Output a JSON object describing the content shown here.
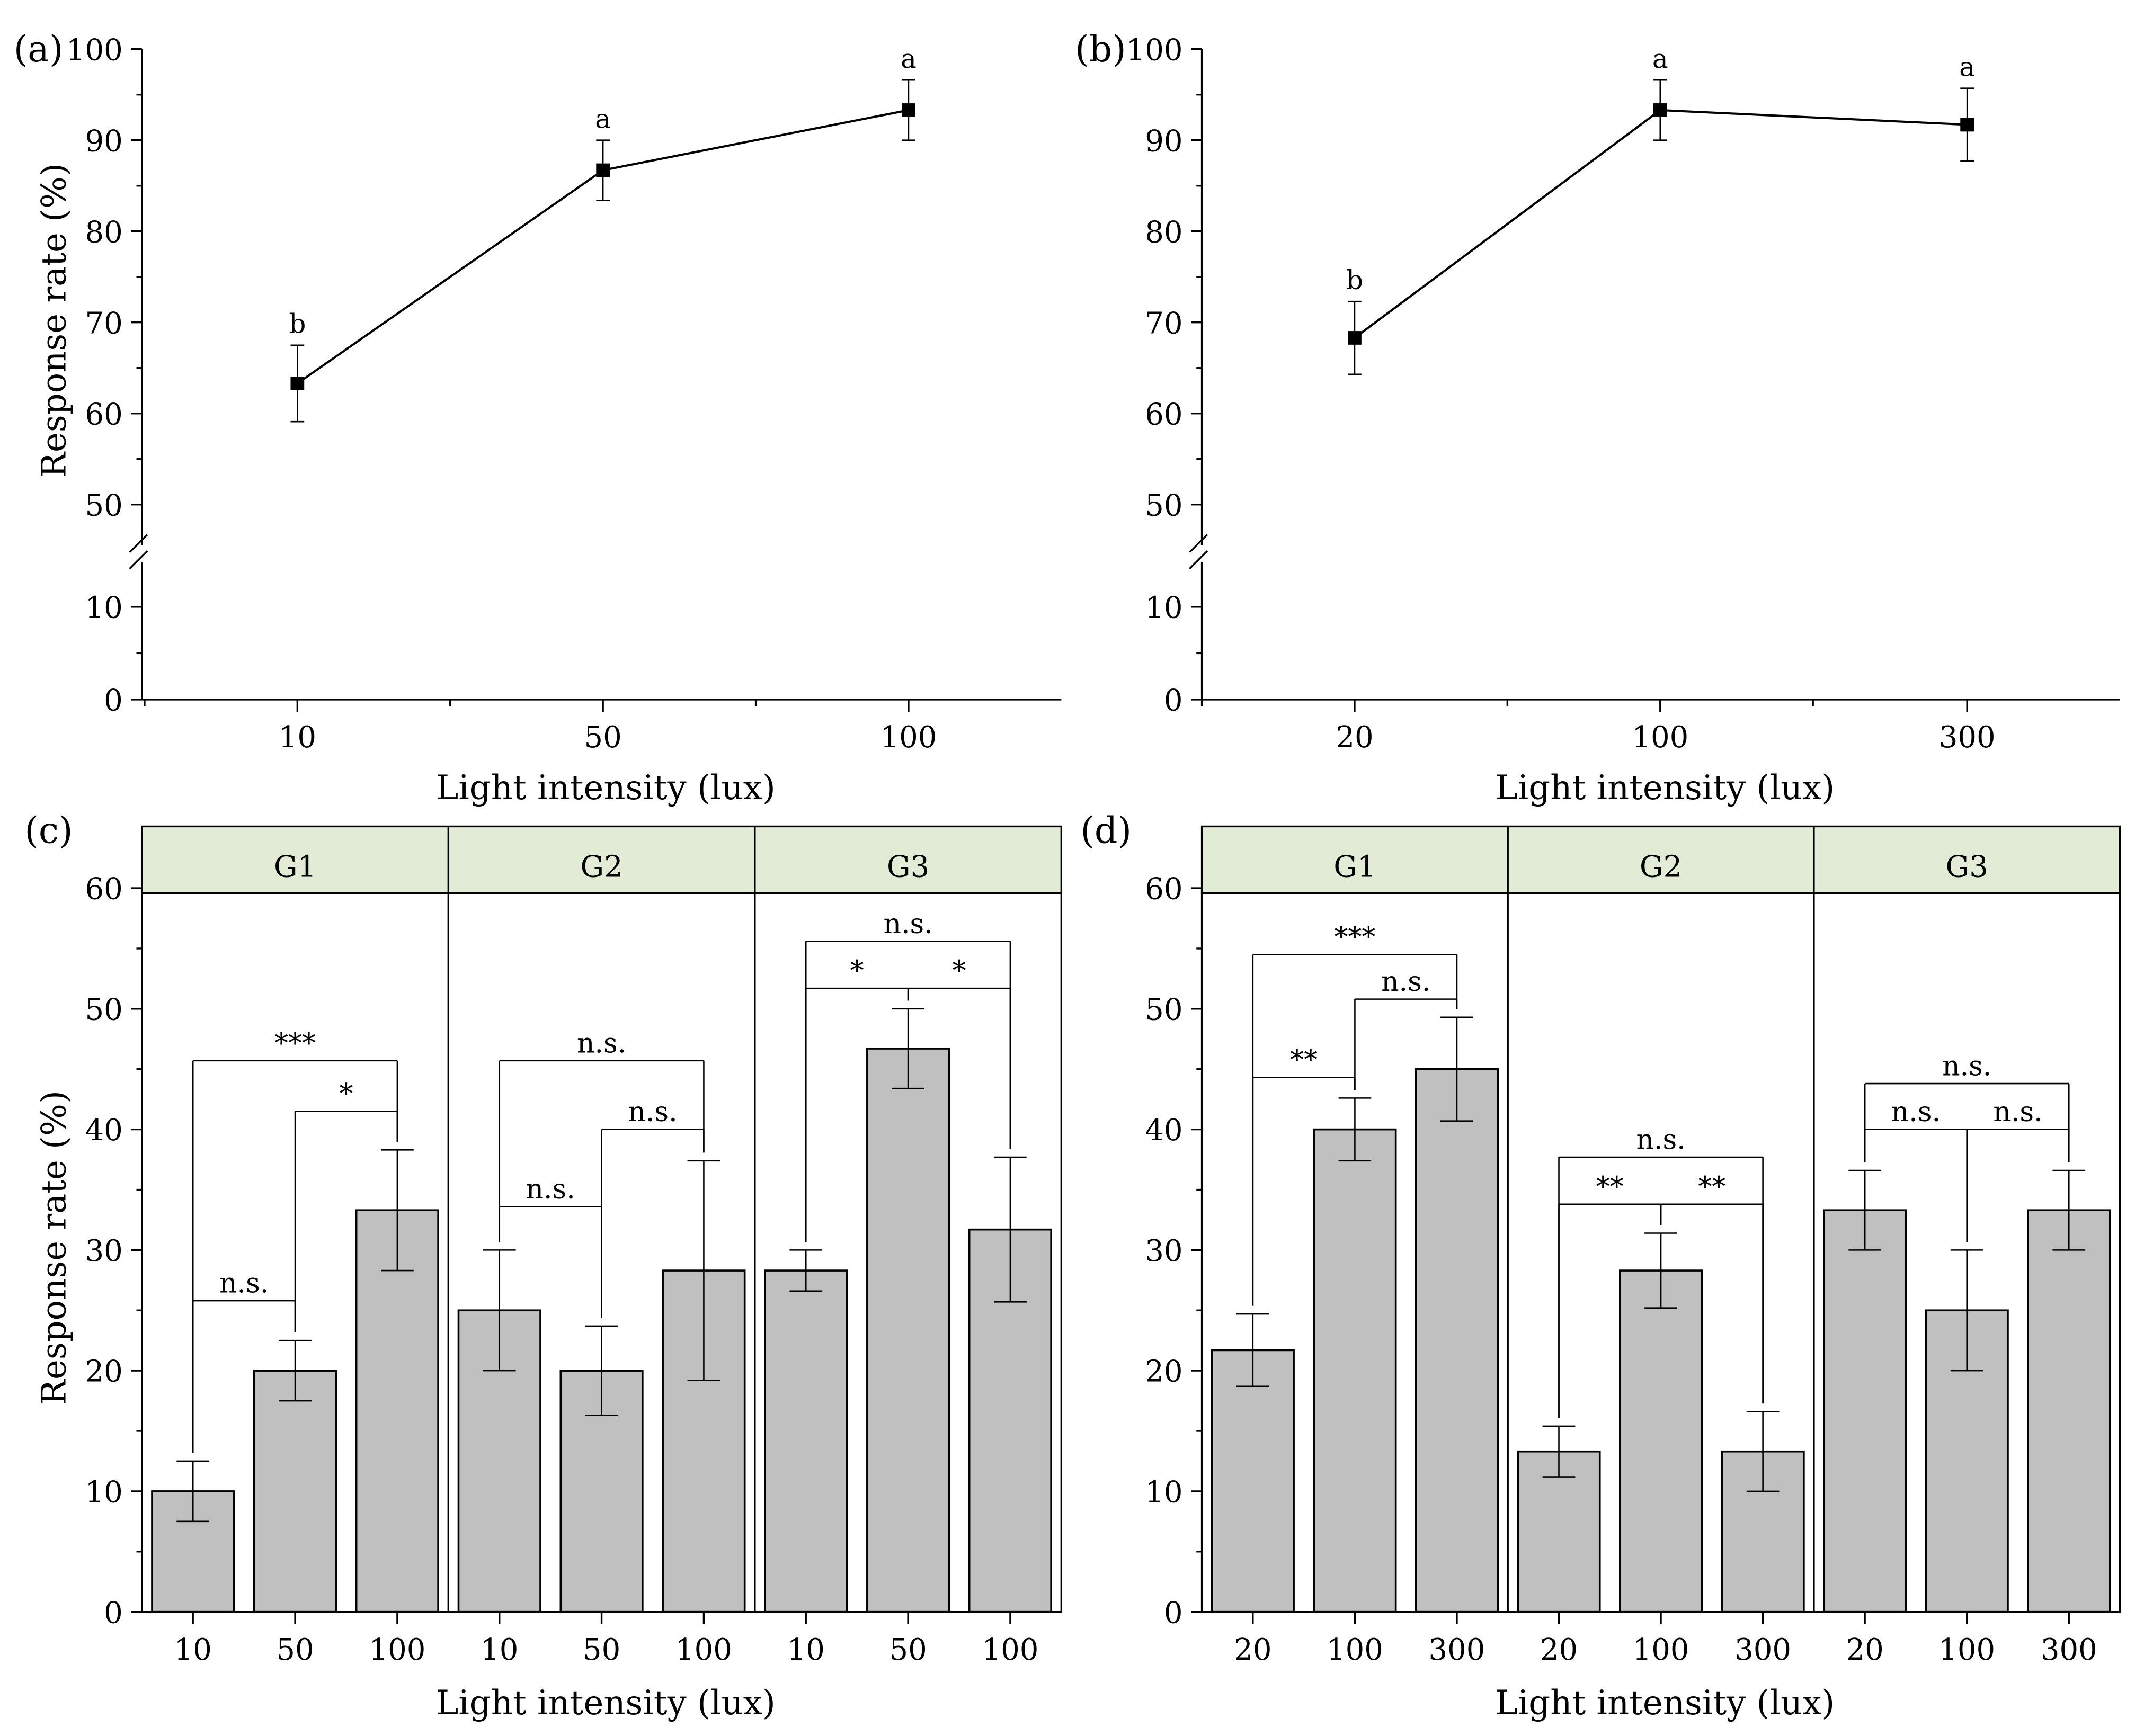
{
  "figure": {
    "background": "#ffffff",
    "bar_fill": "#c0c0c0",
    "strip_fill": "#e2ebd5",
    "line_color": "#000000"
  },
  "chart_data": [
    {
      "panel": "(a)",
      "type": "line",
      "categories": [
        "10",
        "50",
        "100"
      ],
      "values": [
        63.3,
        86.7,
        93.3
      ],
      "errors": [
        4.2,
        3.3,
        3.3
      ],
      "letters": [
        "b",
        "a",
        "a"
      ],
      "xlabel": "Light intensity (lux)",
      "ylabel": "Response rate (%)",
      "yticks_low": [
        "0",
        "10"
      ],
      "yticks_high": [
        "50",
        "60",
        "70",
        "80",
        "90",
        "100"
      ],
      "axis_break": true,
      "ylim_high": [
        45,
        100
      ]
    },
    {
      "panel": "(b)",
      "type": "line",
      "categories": [
        "20",
        "100",
        "300"
      ],
      "values": [
        68.3,
        93.3,
        91.7
      ],
      "errors": [
        4.0,
        3.3,
        4.0
      ],
      "letters": [
        "b",
        "a",
        "a"
      ],
      "xlabel": "Light intensity (lux)",
      "ylabel": "",
      "yticks_low": [
        "0",
        "10"
      ],
      "yticks_high": [
        "50",
        "60",
        "70",
        "80",
        "90",
        "100"
      ],
      "axis_break": true,
      "ylim_high": [
        45,
        100
      ]
    },
    {
      "panel": "(c)",
      "type": "bar",
      "xlabel": "Light intensity (lux)",
      "ylabel": "Response rate (%)",
      "ylim": [
        0,
        60
      ],
      "yticks": [
        "0",
        "10",
        "20",
        "30",
        "40",
        "50",
        "60"
      ],
      "groups": [
        {
          "name": "G1",
          "categories": [
            "10",
            "50",
            "100"
          ],
          "values": [
            10.0,
            20.0,
            33.3
          ],
          "errors": [
            2.5,
            2.5,
            5.0
          ],
          "comparisons": [
            {
              "from": 0,
              "to": 1,
              "label": "n.s.",
              "y": 25.8
            },
            {
              "from": 1,
              "to": 2,
              "label": "*",
              "y": 41.5
            },
            {
              "from": 0,
              "to": 2,
              "label": "***",
              "y": 45.7
            }
          ]
        },
        {
          "name": "G2",
          "categories": [
            "10",
            "50",
            "100"
          ],
          "values": [
            25.0,
            20.0,
            28.3
          ],
          "errors": [
            5.0,
            3.7,
            9.1
          ],
          "comparisons": [
            {
              "from": 0,
              "to": 1,
              "label": "n.s.",
              "y": 33.6
            },
            {
              "from": 1,
              "to": 2,
              "label": "n.s.",
              "y": 40.0
            },
            {
              "from": 0,
              "to": 2,
              "label": "n.s.",
              "y": 45.7
            }
          ]
        },
        {
          "name": "G3",
          "categories": [
            "10",
            "50",
            "100"
          ],
          "values": [
            28.3,
            46.7,
            31.7
          ],
          "errors": [
            1.7,
            3.3,
            6.0
          ],
          "comparisons": [
            {
              "from": 0,
              "to": 1,
              "label": "*",
              "y": 51.7
            },
            {
              "from": 1,
              "to": 2,
              "label": "*",
              "y": 51.7
            },
            {
              "from": 0,
              "to": 2,
              "label": "n.s.",
              "y": 55.6
            }
          ]
        }
      ]
    },
    {
      "panel": "(d)",
      "type": "bar",
      "xlabel": "Light intensity (lux)",
      "ylabel": "",
      "ylim": [
        0,
        60
      ],
      "yticks": [
        "0",
        "10",
        "20",
        "30",
        "40",
        "50",
        "60"
      ],
      "groups": [
        {
          "name": "G1",
          "categories": [
            "20",
            "100",
            "300"
          ],
          "values": [
            21.7,
            40.0,
            45.0
          ],
          "errors": [
            3.0,
            2.6,
            4.3
          ],
          "comparisons": [
            {
              "from": 0,
              "to": 1,
              "label": "**",
              "y": 44.3
            },
            {
              "from": 1,
              "to": 2,
              "label": "n.s.",
              "y": 50.8
            },
            {
              "from": 0,
              "to": 2,
              "label": "***",
              "y": 54.5
            }
          ]
        },
        {
          "name": "G2",
          "categories": [
            "20",
            "100",
            "300"
          ],
          "values": [
            13.3,
            28.3,
            13.3
          ],
          "errors": [
            2.1,
            3.1,
            3.3
          ],
          "comparisons": [
            {
              "from": 0,
              "to": 1,
              "label": "**",
              "y": 33.8
            },
            {
              "from": 1,
              "to": 2,
              "label": "**",
              "y": 33.8
            },
            {
              "from": 0,
              "to": 2,
              "label": "n.s.",
              "y": 37.7
            }
          ]
        },
        {
          "name": "G3",
          "categories": [
            "20",
            "100",
            "300"
          ],
          "values": [
            33.3,
            25.0,
            33.3
          ],
          "errors": [
            3.3,
            5.0,
            3.3
          ],
          "comparisons": [
            {
              "from": 0,
              "to": 1,
              "label": "n.s.",
              "y": 40.0
            },
            {
              "from": 1,
              "to": 2,
              "label": "n.s.",
              "y": 40.0
            },
            {
              "from": 0,
              "to": 2,
              "label": "n.s.",
              "y": 43.8
            }
          ]
        }
      ]
    }
  ]
}
